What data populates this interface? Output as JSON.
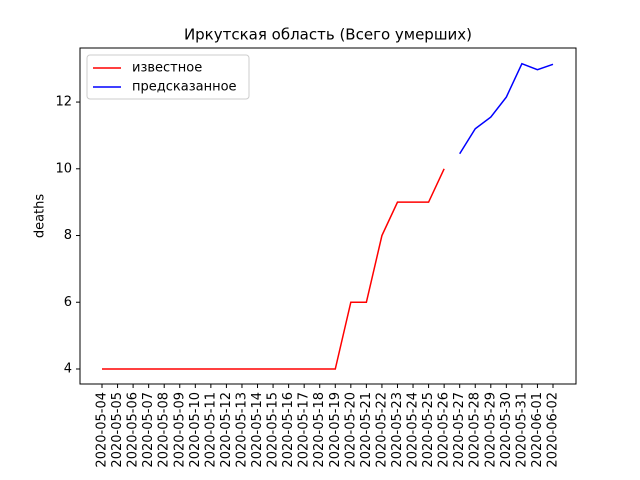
{
  "chart_data": {
    "type": "line",
    "title": "Иркутская область (Всего умерших)",
    "y_label": "deaths",
    "categories": [
      "2020-05-04",
      "2020-05-05",
      "2020-05-06",
      "2020-05-07",
      "2020-05-08",
      "2020-05-09",
      "2020-05-10",
      "2020-05-11",
      "2020-05-12",
      "2020-05-13",
      "2020-05-14",
      "2020-05-15",
      "2020-05-16",
      "2020-05-17",
      "2020-05-18",
      "2020-05-19",
      "2020-05-20",
      "2020-05-21",
      "2020-05-22",
      "2020-05-23",
      "2020-05-24",
      "2020-05-25",
      "2020-05-26",
      "2020-05-27",
      "2020-05-28",
      "2020-05-29",
      "2020-05-30",
      "2020-05-31",
      "2020-06-01",
      "2020-06-02"
    ],
    "series": [
      {
        "name": "известное",
        "color": "#ff0000",
        "values": [
          4,
          4,
          4,
          4,
          4,
          4,
          4,
          4,
          4,
          4,
          4,
          4,
          4,
          4,
          4,
          4,
          6,
          6,
          8,
          9,
          9,
          9,
          10,
          null,
          null,
          null,
          null,
          null,
          null,
          null
        ]
      },
      {
        "name": "предсказанное",
        "color": "#0000ff",
        "values": [
          null,
          null,
          null,
          null,
          null,
          null,
          null,
          null,
          null,
          null,
          null,
          null,
          null,
          null,
          null,
          null,
          null,
          null,
          null,
          null,
          null,
          null,
          null,
          10.45,
          11.2,
          11.55,
          12.15,
          13.15,
          12.97,
          13.13
        ]
      }
    ],
    "ylim": [
      3.55,
      13.62
    ],
    "yticks": [
      4,
      6,
      8,
      10,
      12
    ],
    "legend": "upper left"
  }
}
